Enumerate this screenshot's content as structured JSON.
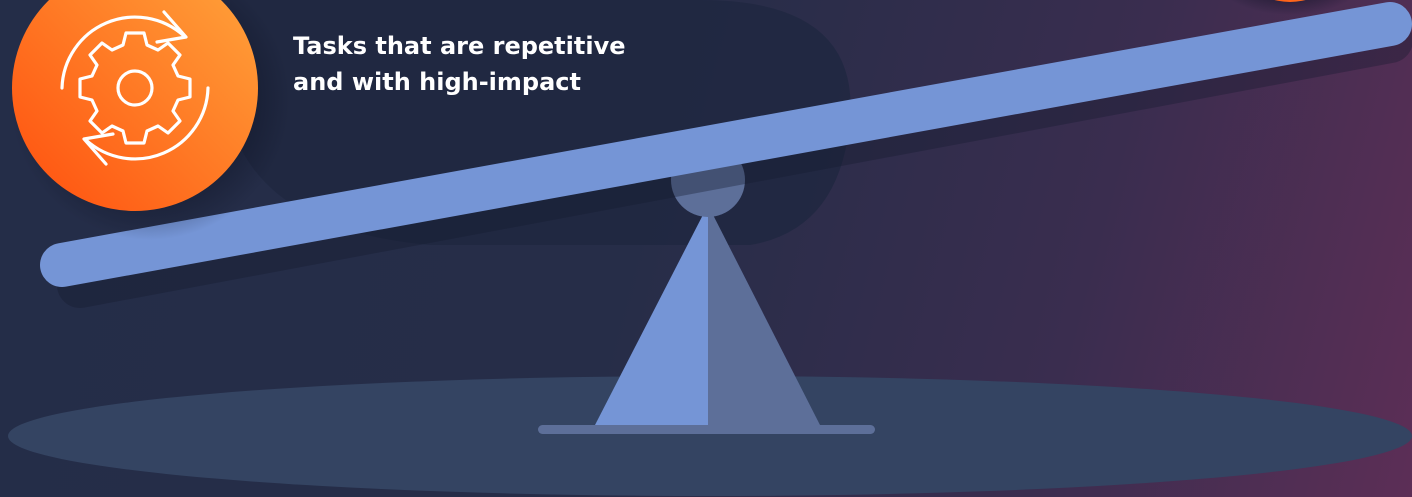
{
  "caption": {
    "line1": "Tasks that are repetitive",
    "line2": "and with high-impact"
  },
  "icons": {
    "badge_icon": "gear-with-circular-arrows-icon"
  },
  "colors": {
    "background_dark": "#242d48",
    "background_accent": "#5c2e56",
    "badge_orange_start": "#ff5a12",
    "badge_orange_end": "#ffa43a",
    "beam_blue": "#7595d6",
    "fulcrum_shadow": "#5d6f99",
    "ground": "#344462",
    "text": "#ffffff"
  }
}
